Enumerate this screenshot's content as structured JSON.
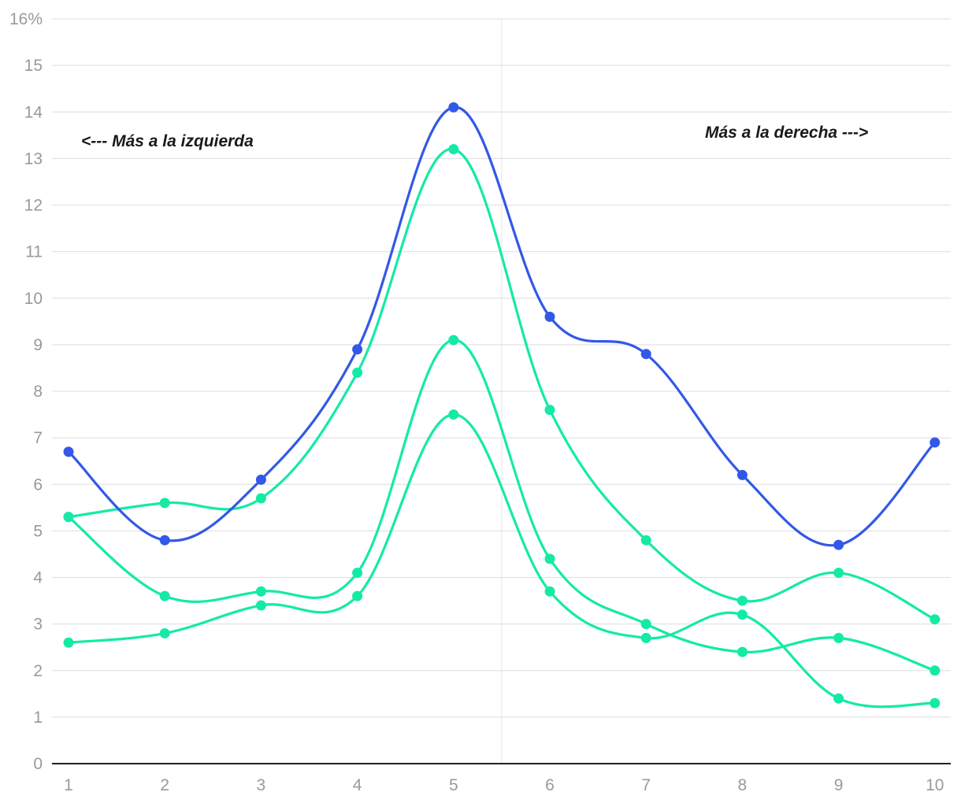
{
  "chart_data": {
    "type": "line",
    "x": [
      1,
      2,
      3,
      4,
      5,
      6,
      7,
      8,
      9,
      10
    ],
    "x_tick_labels": [
      "1",
      "2",
      "3",
      "4",
      "5",
      "6",
      "7",
      "8",
      "9",
      "10"
    ],
    "y_tick_labels": [
      "0",
      "1",
      "2",
      "3",
      "4",
      "5",
      "6",
      "7",
      "8",
      "9",
      "10",
      "11",
      "12",
      "13",
      "14",
      "15",
      "16%"
    ],
    "ylim": [
      0,
      16
    ],
    "y_unit": "%",
    "grid": "horizontal",
    "series": [
      {
        "color": "#3358e8",
        "values": [
          6.7,
          4.8,
          6.1,
          8.9,
          14.1,
          9.6,
          8.8,
          6.2,
          4.7,
          6.9
        ]
      },
      {
        "color": "#14eaa6",
        "values": [
          5.3,
          5.6,
          5.7,
          8.4,
          13.2,
          7.6,
          4.8,
          3.5,
          4.1,
          3.1
        ]
      },
      {
        "color": "#14eaa6",
        "values": [
          5.3,
          3.6,
          3.7,
          4.1,
          9.1,
          4.4,
          3.0,
          2.4,
          2.7,
          2.0
        ]
      },
      {
        "color": "#14eaa6",
        "values": [
          2.6,
          2.8,
          3.4,
          3.6,
          7.5,
          3.7,
          2.7,
          3.2,
          1.4,
          1.3
        ]
      }
    ],
    "annotations": [
      {
        "text": "<--- Más a la izquierda"
      },
      {
        "text": "Más a la derecha --->"
      }
    ],
    "center_divider_at_x": 5.5
  }
}
